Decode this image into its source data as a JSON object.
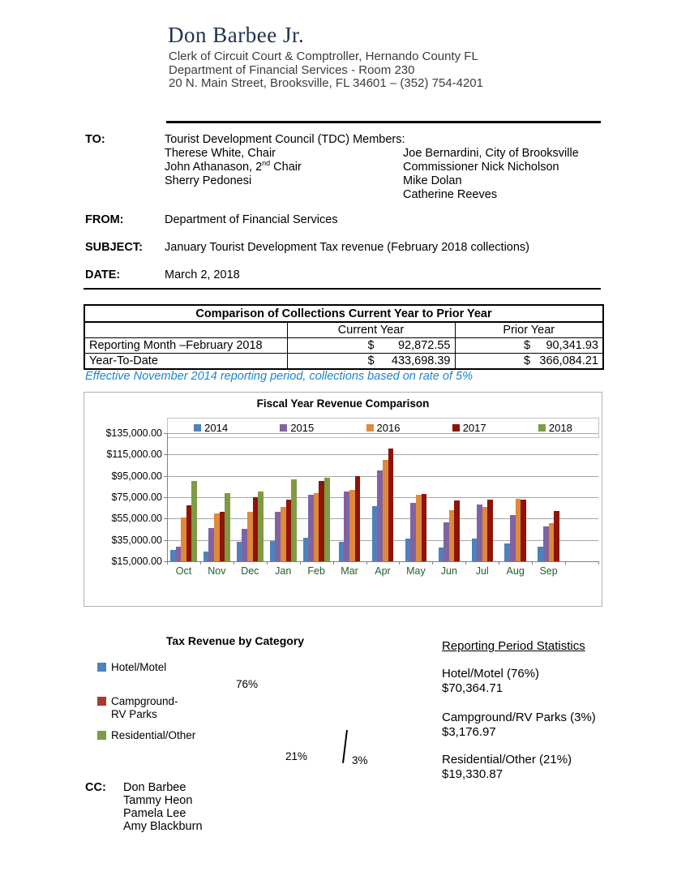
{
  "header": {
    "name": "Don Barbee Jr.",
    "org_lines": [
      "Clerk of Circuit Court & Comptroller, Hernando County FL",
      "Department of Financial Services - Room 230",
      "20 N. Main Street, Brooksville, FL 34601 – (352) 754-4201"
    ]
  },
  "memo": {
    "to_label": "TO:",
    "to_heading": "Tourist Development Council (TDC) Members:",
    "to_left_1": "Therese White, Chair",
    "to_left_2_pre": "John Athanason, 2",
    "to_left_2_sup": "nd",
    "to_left_2_post": " Chair",
    "to_left_3": "Sherry Pedonesi",
    "to_right": [
      "Joe Bernardini, City of Brooksville",
      "Commissioner Nick Nicholson",
      "Mike Dolan",
      "Catherine Reeves"
    ],
    "from_label": "FROM:",
    "from_value": "Department of Financial Services",
    "subject_label": "SUBJECT:",
    "subject_value": "January Tourist Development Tax revenue (February 2018 collections)",
    "date_label": "DATE:",
    "date_value": "March 2, 2018"
  },
  "table": {
    "title": "Comparison of Collections Current Year to Prior Year",
    "columns": [
      "",
      "Current Year",
      "Prior Year"
    ],
    "rows": [
      {
        "label": "Reporting Month –February 2018",
        "current_sym": "$",
        "current": "92,872.55",
        "prior_sym": "$",
        "prior": "90,341.93"
      },
      {
        "label": "Year-To-Date",
        "current_sym": "$",
        "current": "433,698.39",
        "prior_sym": "$",
        "prior": "366,084.21"
      }
    ]
  },
  "note": "Effective November 2014 reporting period, collections based on rate of 5%",
  "chart_data": [
    {
      "type": "bar",
      "title": "Fiscal Year Revenue Comparison",
      "categories": [
        "Oct",
        "Nov",
        "Dec",
        "Jan",
        "Feb",
        "Mar",
        "Apr",
        "May",
        "Jun",
        "Jul",
        "Aug",
        "Sep"
      ],
      "series": [
        {
          "name": "2014",
          "color": "#4F81BD",
          "values": [
            25500,
            24000,
            33000,
            34000,
            37000,
            33000,
            66500,
            36500,
            28000,
            36000,
            31500,
            28500
          ]
        },
        {
          "name": "2015",
          "color": "#8064A2",
          "values": [
            29000,
            46500,
            45500,
            61000,
            77000,
            80000,
            100000,
            69500,
            51500,
            68000,
            58000,
            48000
          ]
        },
        {
          "name": "2016",
          "color": "#E0883C",
          "values": [
            56000,
            59500,
            61500,
            66000,
            78500,
            81500,
            110000,
            77000,
            63000,
            66000,
            73500,
            51000
          ]
        },
        {
          "name": "2017",
          "color": "#8E1408",
          "values": [
            67500,
            61500,
            75000,
            72500,
            90341.93,
            95000,
            120500,
            78000,
            72000,
            72500,
            73000,
            62000
          ]
        },
        {
          "name": "2018",
          "color": "#7E9B43",
          "values": [
            90000,
            78500,
            80500,
            91500,
            92872.55,
            null,
            null,
            null,
            null,
            null,
            null,
            null
          ]
        }
      ],
      "ylim": [
        15000,
        135000
      ],
      "ytick_step": 20000,
      "ytick_labels": [
        "$15,000.00",
        "$35,000.00",
        "$55,000.00",
        "$75,000.00",
        "$95,000.00",
        "$115,000.00",
        "$135,000.00"
      ],
      "legend_position": "top",
      "grid": true
    },
    {
      "type": "pie",
      "title": "Tax Revenue by Category",
      "labels": [
        "Hotel/Motel",
        "Campground-RV Parks",
        "Residential/Other"
      ],
      "values": [
        76,
        3,
        21
      ],
      "value_labels": [
        "76%",
        "3%",
        "21%"
      ],
      "colors": [
        "#4F81BD",
        "#A93A2B",
        "#7E9B43"
      ]
    }
  ],
  "stats": {
    "heading": "Reporting Period Statistics",
    "items": [
      {
        "label": "Hotel/Motel (76%)",
        "amount": "$70,364.71"
      },
      {
        "label": "Campground/RV Parks (3%)",
        "amount": "$3,176.97"
      },
      {
        "label": "Residential/Other (21%)",
        "amount": "$19,330.87"
      }
    ]
  },
  "cc": {
    "label": "CC:",
    "names": [
      "Don Barbee",
      "Tammy Heon",
      "Pamela Lee",
      "Amy Blackburn"
    ]
  }
}
